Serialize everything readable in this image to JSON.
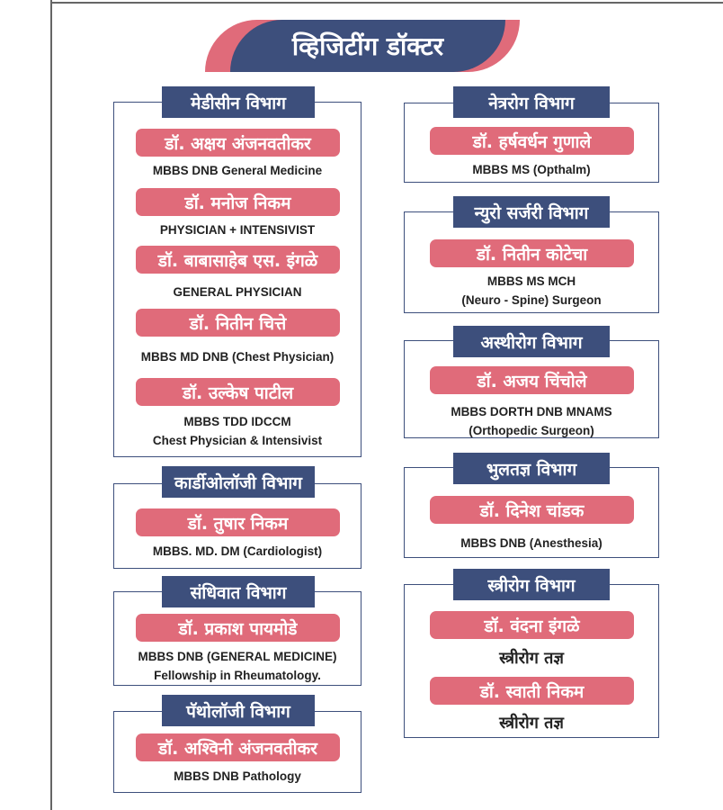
{
  "title": "व्हिजिटींग डॉक्टर",
  "colors": {
    "navy": "#3d4f7c",
    "pink": "#e06b7a"
  },
  "left_column": [
    {
      "department": "मेडीसीन विभाग",
      "doctors": [
        {
          "name": "डॉ. अक्षय अंजनवतीकर",
          "qualification": [
            "MBBS DNB General Medicine"
          ]
        },
        {
          "name": "डॉ. मनोज निकम",
          "qualification": [
            "PHYSICIAN + INTENSIVIST"
          ]
        },
        {
          "name": "डॉ. बाबासाहेब एस. इंगळे",
          "qualification": [
            "GENERAL PHYSICIAN"
          ]
        },
        {
          "name": "डॉ. नितीन चित्ते",
          "qualification": [
            "MBBS MD DNB (Chest Physician)"
          ]
        },
        {
          "name": "डॉ. उल्केष पाटील",
          "qualification": [
            "MBBS TDD IDCCM",
            "Chest Physician & Intensivist"
          ]
        }
      ]
    },
    {
      "department": "कार्डीओलॉजी विभाग",
      "doctors": [
        {
          "name": "डॉ. तुषार निकम",
          "qualification": [
            "MBBS. MD. DM (Cardiologist)"
          ]
        }
      ]
    },
    {
      "department": "संधिवात विभाग",
      "doctors": [
        {
          "name": "डॉ. प्रकाश पायमोडे",
          "qualification": [
            "MBBS DNB (GENERAL MEDICINE)",
            "Fellowship in Rheumatology."
          ]
        }
      ]
    },
    {
      "department": "पॅथोलॉजी विभाग",
      "doctors": [
        {
          "name": "डॉ. अश्विनी अंजनवतीकर",
          "qualification": [
            "MBBS DNB Pathology"
          ]
        }
      ]
    }
  ],
  "right_column": [
    {
      "department": "नेत्ररोग विभाग",
      "doctors": [
        {
          "name": "डॉ. हर्षवर्धन गुणाले",
          "qualification": [
            "MBBS MS (Opthalm)"
          ]
        }
      ]
    },
    {
      "department": "न्युरो सर्जरी विभाग",
      "doctors": [
        {
          "name": "डॉ. नितीन कोटेचा",
          "qualification": [
            "MBBS MS MCH",
            "(Neuro - Spine) Surgeon"
          ]
        }
      ]
    },
    {
      "department": "अस्थीरोग विभाग",
      "doctors": [
        {
          "name": "डॉ. अजय चिंचोले",
          "qualification": [
            "MBBS DORTH DNB MNAMS",
            "(Orthopedic Surgeon)"
          ]
        }
      ]
    },
    {
      "department": "भुलतज्ञ विभाग",
      "doctors": [
        {
          "name": "डॉ. दिनेश चांडक",
          "qualification": [
            "MBBS DNB (Anesthesia)"
          ]
        }
      ]
    },
    {
      "department": "स्त्रीरोग विभाग",
      "doctors": [
        {
          "name": "डॉ. वंदना इंगळे",
          "qualification": [
            "स्त्रीरोग तज्ञ"
          ]
        },
        {
          "name": "डॉ. स्वाती निकम",
          "qualification": [
            "स्त्रीरोग तज्ञ"
          ]
        }
      ]
    }
  ]
}
